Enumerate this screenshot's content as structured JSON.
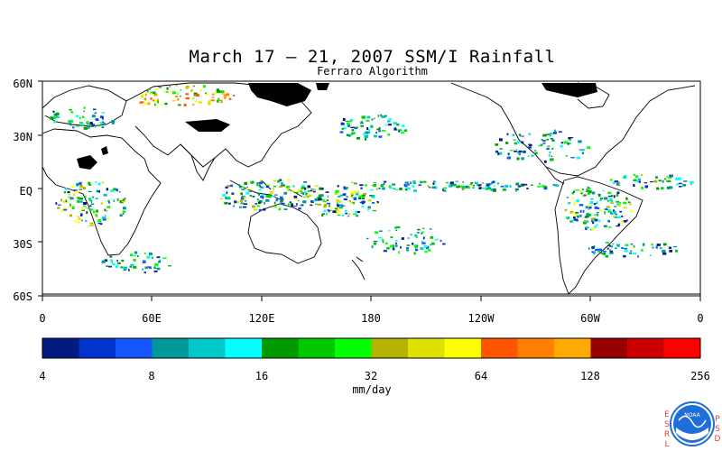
{
  "title": "March 17 – 21, 2007 SSM/I Rainfall",
  "subtitle": "Ferraro Algorithm",
  "lat_labels": [
    "60N",
    "30N",
    "EQ",
    "30S",
    "60S"
  ],
  "lon_labels": [
    "0",
    "60E",
    "120E",
    "180",
    "120W",
    "60W",
    "0"
  ],
  "colorbar": {
    "tick_labels": [
      "4",
      "8",
      "16",
      "32",
      "64",
      "128",
      "256"
    ],
    "units": "mm/day",
    "colors": [
      "#001a80",
      "#0033cc",
      "#1455ff",
      "#009999",
      "#00c8c8",
      "#00ffff",
      "#009900",
      "#00c800",
      "#00ff00",
      "#b3b300",
      "#e0e000",
      "#ffff00",
      "#ff5500",
      "#ff8000",
      "#ffaa00",
      "#990000",
      "#cc0000",
      "#ff0000"
    ]
  },
  "logo": {
    "left_letters": "ESRL",
    "right_letters": "PSD",
    "badge_text": "NOAA"
  }
}
